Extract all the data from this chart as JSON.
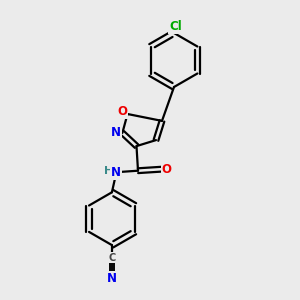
{
  "background_color": "#ebebeb",
  "bond_color": "#000000",
  "bond_width": 1.6,
  "atom_colors": {
    "N": "#0000ee",
    "O": "#ee0000",
    "Cl": "#00aa00",
    "H_color": "#3a8a8a"
  },
  "font_size": 8.5,
  "figsize": [
    3.0,
    3.0
  ],
  "dpi": 100
}
